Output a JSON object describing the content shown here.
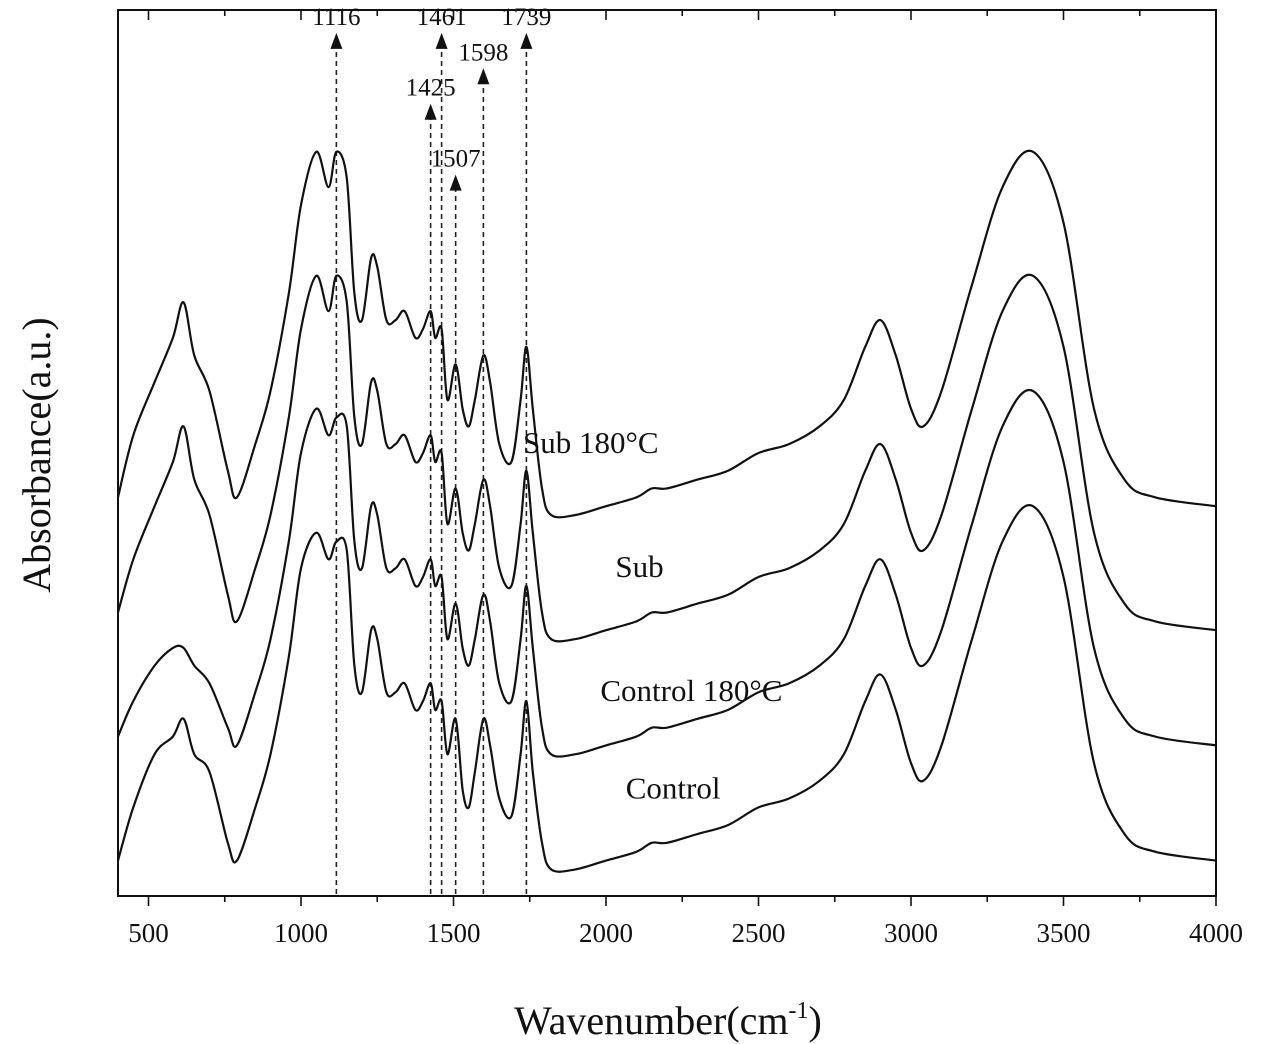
{
  "chart_data": {
    "type": "line",
    "title": "",
    "xlabel": "Wavenumber(cm",
    "xlabel_sup": "-1",
    "xlabel_close": ")",
    "ylabel": "Absorbance(a.u.)",
    "xlim": [
      400,
      4000
    ],
    "ylim": [
      0,
      100
    ],
    "y_ticks_shown": false,
    "grid": false,
    "legend": "none",
    "x_ticks": [
      {
        "value": 500,
        "label": "500"
      },
      {
        "value": 1000,
        "label": "1000"
      },
      {
        "value": 1500,
        "label": "1500"
      },
      {
        "value": 2000,
        "label": "2000"
      },
      {
        "value": 2500,
        "label": "2500"
      },
      {
        "value": 3000,
        "label": "3000"
      },
      {
        "value": 3500,
        "label": "3500"
      },
      {
        "value": 4000,
        "label": "4000"
      }
    ],
    "peaks": [
      {
        "x": 1116,
        "label": "1116",
        "label_y": 99
      },
      {
        "x": 1425,
        "label": "1425",
        "label_y": 91
      },
      {
        "x": 1461,
        "label": "1461",
        "label_y": 99
      },
      {
        "x": 1507,
        "label": "1507",
        "label_y": 83
      },
      {
        "x": 1598,
        "label": "1598",
        "label_y": 95
      },
      {
        "x": 1739,
        "label": "1739",
        "label_y": 99
      }
    ],
    "series": [
      {
        "label": "Sub 180°C",
        "label_x": 1950,
        "label_y": 50,
        "x": [
          400,
          450,
          520,
          580,
          615,
          650,
          700,
          760,
          790,
          850,
          900,
          960,
          1000,
          1050,
          1090,
          1116,
          1150,
          1175,
          1200,
          1230,
          1250,
          1280,
          1310,
          1340,
          1375,
          1400,
          1425,
          1440,
          1461,
          1480,
          1507,
          1530,
          1550,
          1570,
          1598,
          1620,
          1650,
          1690,
          1720,
          1739,
          1760,
          1790,
          1820,
          1900,
          2000,
          2100,
          2150,
          2200,
          2300,
          2400,
          2500,
          2600,
          2700,
          2780,
          2850,
          2900,
          2950,
          3000,
          3040,
          3100,
          3200,
          3300,
          3400,
          3500,
          3600,
          3700,
          3800,
          4000
        ],
        "y": [
          45,
          52,
          58,
          63,
          67,
          61,
          57,
          48,
          45,
          51,
          57,
          68,
          78,
          84,
          80,
          84,
          81,
          68,
          65,
          72,
          71,
          65,
          65,
          66,
          63,
          64,
          66,
          63,
          64,
          56,
          60,
          55,
          53,
          56,
          61,
          58,
          51,
          49,
          56,
          62,
          55,
          46,
          43,
          43,
          44,
          45,
          46,
          46,
          47,
          48,
          50,
          51,
          53,
          56,
          62,
          65,
          61,
          55,
          53,
          57,
          69,
          80,
          84,
          76,
          55,
          47,
          45,
          44
        ]
      },
      {
        "label": "Sub",
        "label_x": 2110,
        "label_y": 36,
        "x": [
          400,
          450,
          520,
          580,
          615,
          650,
          700,
          760,
          790,
          850,
          900,
          960,
          1000,
          1050,
          1090,
          1116,
          1150,
          1175,
          1200,
          1230,
          1250,
          1280,
          1310,
          1340,
          1375,
          1400,
          1425,
          1440,
          1461,
          1480,
          1507,
          1530,
          1550,
          1570,
          1598,
          1620,
          1650,
          1690,
          1720,
          1739,
          1760,
          1790,
          1820,
          1900,
          2000,
          2100,
          2150,
          2200,
          2300,
          2400,
          2500,
          2600,
          2700,
          2780,
          2850,
          2900,
          2950,
          3000,
          3040,
          3100,
          3200,
          3300,
          3400,
          3500,
          3600,
          3700,
          3800,
          4000
        ],
        "y": [
          32,
          38,
          44,
          49,
          53,
          47,
          43,
          34,
          31,
          37,
          43,
          54,
          64,
          70,
          66,
          70,
          67,
          54,
          51,
          58,
          57,
          51,
          51,
          52,
          49,
          50,
          52,
          49,
          50,
          42,
          46,
          41,
          39,
          42,
          47,
          44,
          37,
          35,
          42,
          48,
          41,
          32,
          29,
          29,
          30,
          31,
          32,
          32,
          33,
          34,
          36,
          37,
          39,
          42,
          48,
          51,
          47,
          41,
          39,
          43,
          55,
          66,
          70,
          62,
          41,
          33,
          31,
          30
        ]
      },
      {
        "label": "Control 180°C",
        "label_x": 2280,
        "label_y": 22,
        "x": [
          400,
          450,
          520,
          580,
          615,
          650,
          700,
          760,
          790,
          850,
          900,
          960,
          1000,
          1050,
          1090,
          1116,
          1150,
          1175,
          1200,
          1230,
          1250,
          1280,
          1310,
          1340,
          1375,
          1400,
          1425,
          1440,
          1461,
          1480,
          1507,
          1530,
          1550,
          1570,
          1598,
          1620,
          1650,
          1690,
          1720,
          1739,
          1760,
          1790,
          1820,
          1900,
          2000,
          2100,
          2150,
          2200,
          2300,
          2400,
          2500,
          2600,
          2700,
          2780,
          2850,
          2900,
          2950,
          3000,
          3040,
          3100,
          3200,
          3300,
          3400,
          3500,
          3600,
          3700,
          3800,
          4000
        ],
        "y": [
          18,
          22,
          26,
          28,
          28,
          26,
          24,
          19,
          17,
          23,
          29,
          40,
          50,
          55,
          52,
          54,
          53,
          40,
          37,
          44,
          43,
          37,
          37,
          38,
          35,
          36,
          38,
          35,
          36,
          29,
          33,
          28,
          26,
          29,
          34,
          31,
          24,
          22,
          29,
          35,
          28,
          19,
          16,
          16,
          17,
          18,
          19,
          19,
          20,
          21,
          23,
          24,
          26,
          29,
          35,
          38,
          34,
          28,
          26,
          30,
          42,
          53,
          57,
          49,
          28,
          20,
          18,
          17
        ]
      },
      {
        "label": "Control",
        "label_x": 2220,
        "label_y": 11,
        "x": [
          400,
          450,
          520,
          580,
          615,
          650,
          700,
          760,
          790,
          850,
          900,
          960,
          1000,
          1050,
          1090,
          1116,
          1150,
          1175,
          1200,
          1230,
          1250,
          1280,
          1310,
          1340,
          1375,
          1400,
          1425,
          1440,
          1461,
          1480,
          1507,
          1530,
          1550,
          1570,
          1598,
          1620,
          1650,
          1690,
          1720,
          1739,
          1760,
          1790,
          1820,
          1900,
          2000,
          2100,
          2150,
          2200,
          2300,
          2400,
          2500,
          2600,
          2700,
          2780,
          2850,
          2900,
          2950,
          3000,
          3040,
          3100,
          3200,
          3300,
          3400,
          3500,
          3600,
          3700,
          3800,
          4000
        ],
        "y": [
          4,
          10,
          16,
          18,
          20,
          16,
          14,
          6,
          4,
          10,
          16,
          27,
          37,
          41,
          38,
          40,
          39,
          26,
          23,
          30,
          29,
          23,
          23,
          24,
          21,
          22,
          24,
          21,
          22,
          16,
          20,
          12,
          10,
          14,
          20,
          17,
          11,
          9,
          16,
          22,
          14,
          6,
          3,
          3,
          4,
          5,
          6,
          6,
          7,
          8,
          10,
          11,
          13,
          16,
          22,
          25,
          21,
          15,
          13,
          17,
          29,
          40,
          44,
          36,
          15,
          7,
          5,
          4
        ]
      }
    ]
  }
}
